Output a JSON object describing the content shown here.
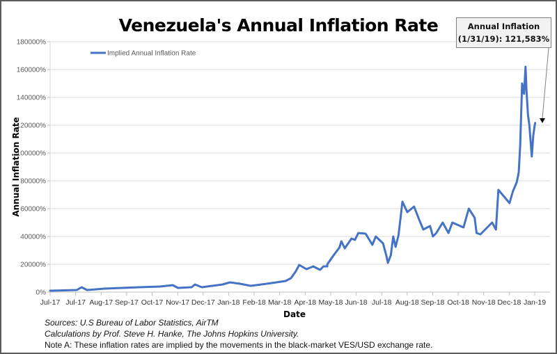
{
  "chart_data": {
    "type": "line",
    "title": "Venezuela's Annual Inflation Rate",
    "xlabel": "Date",
    "ylabel": "Annual Inflation Rate",
    "ylim": [
      0,
      180000
    ],
    "y_ticks": [
      0,
      20000,
      40000,
      60000,
      80000,
      100000,
      120000,
      140000,
      160000,
      180000
    ],
    "y_tick_labels": [
      "0%",
      "20000%",
      "40000%",
      "60000%",
      "80000%",
      "100000%",
      "120000%",
      "140000%",
      "160000%",
      "180000%"
    ],
    "x_tick_labels": [
      "Jul-17",
      "Jul-17",
      "Aug-17",
      "Sep-17",
      "Oct-17",
      "Nov-17",
      "Dec-17",
      "Jan-18",
      "Feb-18",
      "Mar-18",
      "Apr-18",
      "May-18",
      "Jun-18",
      "Jul-18",
      "Aug-18",
      "Sep-18",
      "Oct-18",
      "Nov-18",
      "Dec-18",
      "Jan-19"
    ],
    "x_unit": "fraction of span from first to last x tick label",
    "grid": "horizontal",
    "legend": {
      "position": "top-left",
      "entries": [
        "Implied Annual Inflation Rate"
      ]
    },
    "series": [
      {
        "name": "Implied Annual Inflation Rate",
        "color": "#4472c4",
        "x": [
          0.0,
          0.055,
          0.065,
          0.076,
          0.112,
          0.184,
          0.227,
          0.253,
          0.264,
          0.292,
          0.299,
          0.313,
          0.356,
          0.371,
          0.392,
          0.414,
          0.457,
          0.486,
          0.497,
          0.507,
          0.514,
          0.529,
          0.543,
          0.557,
          0.564,
          0.572,
          0.572,
          0.586,
          0.597,
          0.601,
          0.608,
          0.622,
          0.629,
          0.636,
          0.651,
          0.665,
          0.672,
          0.687,
          0.694,
          0.697,
          0.703,
          0.708,
          0.713,
          0.719,
          0.727,
          0.737,
          0.751,
          0.761,
          0.77,
          0.784,
          0.79,
          0.797,
          0.81,
          0.822,
          0.83,
          0.853,
          0.864,
          0.876,
          0.88,
          0.888,
          0.912,
          0.92,
          0.925,
          0.948,
          0.955,
          0.963,
          0.967,
          0.97,
          0.974,
          0.978,
          0.981,
          0.983,
          0.986,
          0.989,
          0.994,
          0.997,
          1.0,
          1.001
        ],
        "values": [
          1000,
          1500,
          3500,
          1500,
          2500,
          3500,
          4000,
          5000,
          3000,
          3500,
          5500,
          3500,
          5500,
          7000,
          6000,
          4500,
          6500,
          8000,
          10000,
          15000,
          19500,
          16500,
          18500,
          16000,
          18500,
          18500,
          20000,
          27000,
          32000,
          36500,
          31500,
          38500,
          37500,
          42500,
          42000,
          34000,
          40000,
          35000,
          26000,
          21000,
          26500,
          40000,
          32500,
          41000,
          65000,
          57500,
          61500,
          52500,
          45000,
          47500,
          40000,
          42500,
          50000,
          42500,
          50000,
          46500,
          60000,
          53500,
          42500,
          41500,
          50000,
          45000,
          73500,
          64000,
          72500,
          79000,
          86000,
          105000,
          150000,
          142500,
          162000,
          145000,
          127500,
          120000,
          97500,
          112500,
          120000,
          121583
        ]
      }
    ],
    "annotations": [
      {
        "text_line1": "Annual Inflation",
        "text_line2": "(1/31/19): 121,583%",
        "points_to_value": 121583
      }
    ]
  },
  "header": {
    "title": "Venezuela's Annual Inflation Rate"
  },
  "callout": {
    "line1": "Annual Inflation",
    "line2": "(1/31/19): 121,583%"
  },
  "notes": {
    "sources": "Sources: U.S Bureau of Labor Statistics, AirTM",
    "calculations": "Calculations by Prof. Steve H. Hanke, The Johns Hopkins University.",
    "note_a": "Note A: These inflation rates are implied by the movements in the black-market VES/USD exchange rate."
  }
}
